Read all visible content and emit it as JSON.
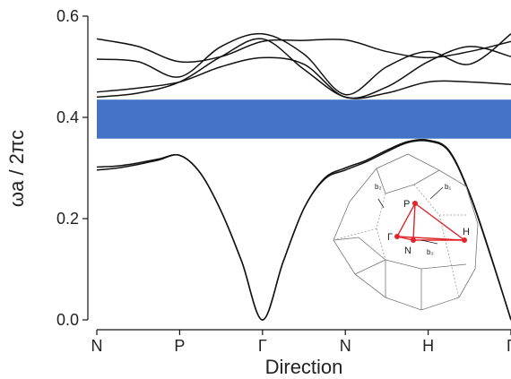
{
  "chart_data": {
    "type": "line",
    "xlabel": "Direction",
    "ylabel": "ωa / 2πc",
    "ylim": [
      0.0,
      0.6
    ],
    "yticks": [
      "0.0",
      "0.2",
      "0.4",
      "0.6"
    ],
    "ytick_values": [
      0.0,
      0.2,
      0.4,
      0.6
    ],
    "xticks": [
      "N",
      "P",
      "Γ",
      "N",
      "H",
      "Γ"
    ],
    "grid": false,
    "band_gap": {
      "from": 0.358,
      "to": 0.435,
      "color": "#4472c4"
    },
    "series": [
      {
        "x": [
          0,
          0.25,
          0.5,
          0.75,
          1,
          1.25,
          1.5,
          1.75,
          2,
          2.25,
          2.5,
          2.75,
          3,
          3.25,
          3.5,
          3.75,
          4,
          4.25,
          4.5,
          4.75,
          5
        ],
        "values": [
          0.302,
          0.304,
          0.31,
          0.318,
          0.325,
          0.29,
          0.215,
          0.115,
          0.0,
          0.115,
          0.22,
          0.28,
          0.3,
          0.315,
          0.335,
          0.352,
          0.355,
          0.335,
          0.25,
          0.13,
          0.0
        ]
      },
      {
        "x": [
          0,
          0.25,
          0.5,
          0.75,
          1,
          1.25,
          1.5,
          1.75,
          2,
          2.25,
          2.5,
          2.75,
          3,
          3.25,
          3.5,
          3.75,
          4,
          4.25,
          4.5,
          4.75,
          5
        ],
        "values": [
          0.296,
          0.3,
          0.307,
          0.316,
          0.325,
          0.29,
          0.215,
          0.115,
          0.0,
          0.115,
          0.22,
          0.278,
          0.296,
          0.312,
          0.332,
          0.35,
          0.353,
          0.333,
          0.248,
          0.128,
          0.0
        ]
      },
      {
        "x": [
          0,
          0.5,
          1,
          1.5,
          2,
          2.5,
          3,
          3.5,
          4,
          4.5,
          5
        ],
        "values": [
          0.555,
          0.54,
          0.51,
          0.52,
          0.55,
          0.552,
          0.553,
          0.53,
          0.518,
          0.53,
          0.55
        ]
      },
      {
        "x": [
          0,
          0.5,
          1,
          1.5,
          2,
          2.5,
          3,
          3.5,
          4,
          4.5,
          5
        ],
        "values": [
          0.515,
          0.51,
          0.48,
          0.54,
          0.565,
          0.525,
          0.445,
          0.5,
          0.53,
          0.505,
          0.565
        ]
      },
      {
        "x": [
          0,
          0.5,
          1,
          1.5,
          2,
          2.5,
          3,
          3.5,
          4,
          4.5,
          5
        ],
        "values": [
          0.45,
          0.458,
          0.47,
          0.5,
          0.518,
          0.505,
          0.44,
          0.46,
          0.51,
          0.54,
          0.52
        ]
      },
      {
        "x": [
          0,
          0.5,
          1,
          1.5,
          2,
          2.5,
          3,
          3.5,
          4,
          4.5,
          5
        ],
        "values": [
          0.44,
          0.448,
          0.47,
          0.52,
          0.555,
          0.495,
          0.44,
          0.448,
          0.47,
          0.47,
          0.465
        ]
      }
    ],
    "inset": {
      "labels": [
        "P",
        "Γ",
        "N",
        "H"
      ],
      "vectors": [
        "b₁",
        "b₂",
        "b₃"
      ],
      "path_color": "#e0262b"
    }
  }
}
